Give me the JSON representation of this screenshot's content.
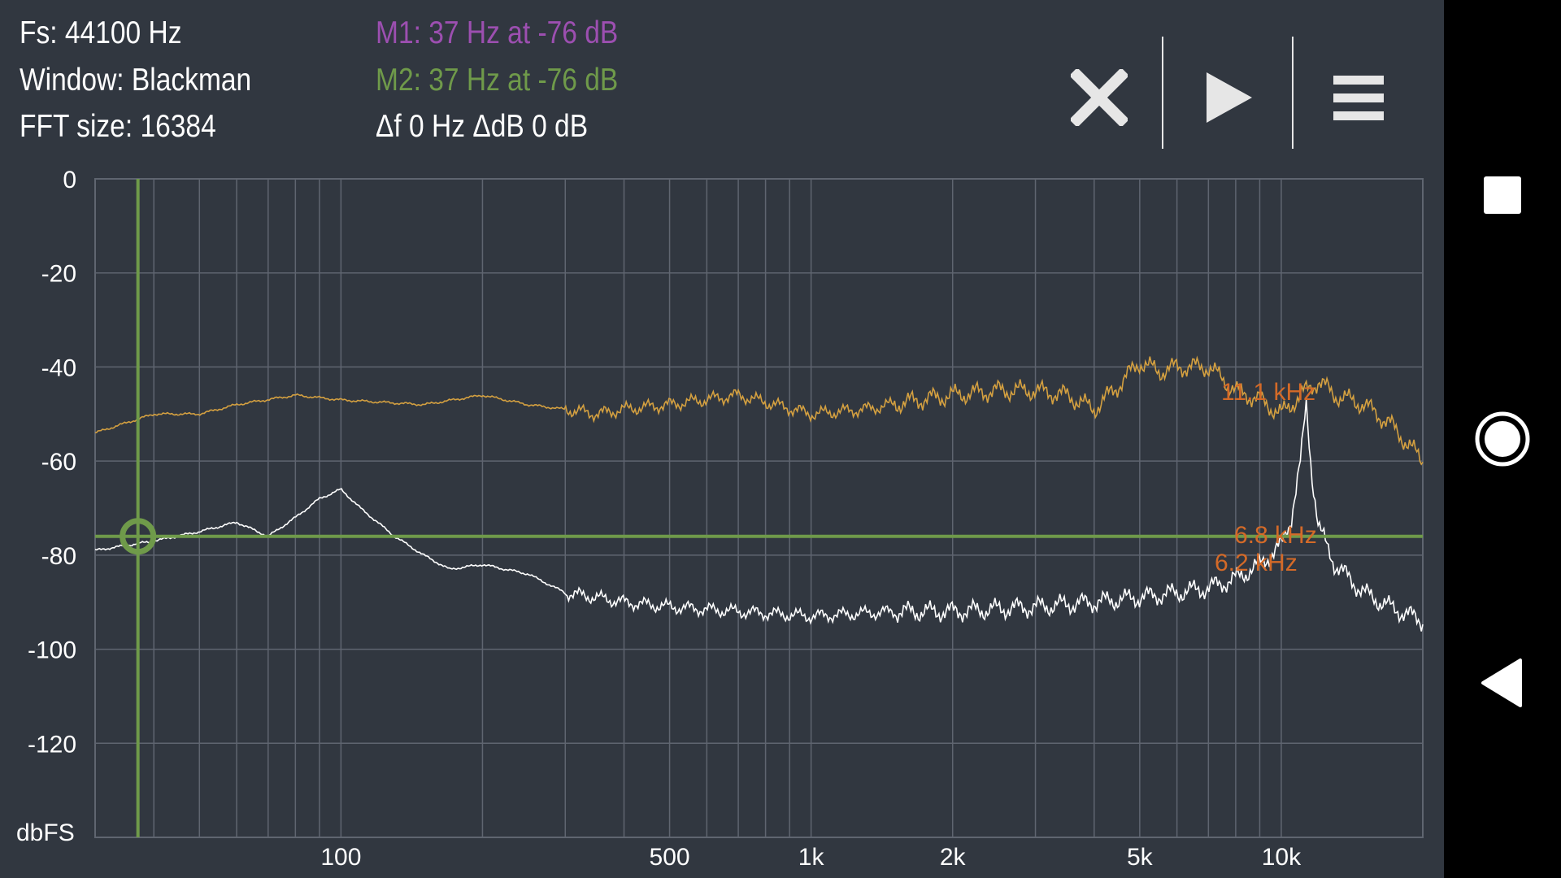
{
  "info": {
    "fs": "Fs: 44100 Hz",
    "window": "Window: Blackman",
    "fft_size": "FFT size: 16384",
    "marker1": "M1: 37 Hz at -76 dB",
    "marker2": "M2: 37 Hz at -76 dB",
    "delta": "Δf 0 Hz ΔdB 0 dB"
  },
  "toolbar": {
    "close_icon": "close-icon",
    "play_icon": "play-icon",
    "menu_icon": "menu-icon"
  },
  "navbar": {
    "recents_icon": "square-icon",
    "home_icon": "circle-icon",
    "back_icon": "triangle-back-icon"
  },
  "colors": {
    "background": "#313740",
    "grid": "#5f6570",
    "peak_trace": "#d4a040",
    "live_trace": "#ffffff",
    "marker": "#6f9a4a",
    "marker1_text": "#9c4fb0",
    "marker2_text": "#6f9a4a",
    "peak_label": "#d46a28"
  },
  "chart_data": {
    "type": "line",
    "xscale": "log",
    "xlim": [
      30,
      20000
    ],
    "ylim": [
      -140,
      0
    ],
    "grid": true,
    "ylabel": "dbFS",
    "xticks": [
      {
        "value": 100,
        "label": "100"
      },
      {
        "value": 500,
        "label": "500"
      },
      {
        "value": 1000,
        "label": "1k"
      },
      {
        "value": 2000,
        "label": "2k"
      },
      {
        "value": 5000,
        "label": "5k"
      },
      {
        "value": 10000,
        "label": "10k"
      }
    ],
    "yticks": [
      {
        "value": 0,
        "label": "0"
      },
      {
        "value": -20,
        "label": "-20"
      },
      {
        "value": -40,
        "label": "-40"
      },
      {
        "value": -60,
        "label": "-60"
      },
      {
        "value": -80,
        "label": "-80"
      },
      {
        "value": -100,
        "label": "-100"
      },
      {
        "value": -120,
        "label": "-120"
      }
    ],
    "series": [
      {
        "color": "#d4a040",
        "x": [
          30,
          40,
          50,
          60,
          80,
          100,
          150,
          200,
          250,
          300,
          350,
          400,
          500,
          700,
          1000,
          1300,
          1700,
          2000,
          2500,
          3000,
          3500,
          4000,
          4500,
          5000,
          5500,
          6000,
          7000,
          8000,
          9000,
          10000,
          11000,
          12000,
          13000,
          15000,
          17000,
          20000
        ],
        "y": [
          -54,
          -50,
          -50,
          -48,
          -46,
          -47,
          -48,
          -46,
          -48,
          -49,
          -50,
          -49,
          -48,
          -46,
          -50,
          -49,
          -47,
          -46,
          -45,
          -45,
          -46,
          -49,
          -44,
          -39,
          -41,
          -40,
          -40,
          -45,
          -47,
          -50,
          -46,
          -43,
          -46,
          -48,
          -52,
          -60
        ]
      },
      {
        "color": "#ffffff",
        "x": [
          30,
          40,
          50,
          60,
          70,
          80,
          90,
          100,
          110,
          130,
          150,
          170,
          200,
          250,
          300,
          350,
          400,
          500,
          700,
          1000,
          1500,
          2000,
          3000,
          4000,
          5000,
          6000,
          7000,
          8000,
          9000,
          10000,
          10500,
          11000,
          11300,
          11600,
          12000,
          13000,
          15000,
          17000,
          20000
        ],
        "y": [
          -79,
          -77,
          -75,
          -73,
          -76,
          -72,
          -68,
          -66,
          -70,
          -76,
          -80,
          -83,
          -82,
          -84,
          -88,
          -89,
          -90,
          -91,
          -92,
          -93,
          -92,
          -92,
          -91,
          -90,
          -89,
          -88,
          -87,
          -85,
          -82,
          -78,
          -72,
          -60,
          -48,
          -62,
          -74,
          -82,
          -88,
          -91,
          -94
        ]
      }
    ],
    "annotations": [
      {
        "text": "11.1 kHz",
        "color": "#d46a28"
      },
      {
        "text": "6.8 kHz",
        "color": "#d46a28"
      },
      {
        "text": "6.2 kHz",
        "color": "#d46a28"
      }
    ],
    "marker": {
      "freq": 37,
      "db": -76
    }
  }
}
